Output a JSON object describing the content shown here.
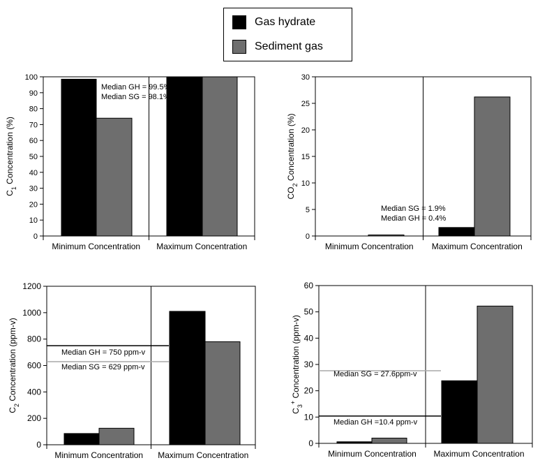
{
  "legend": {
    "items": [
      {
        "label": "Gas hydrate",
        "color": "#000000"
      },
      {
        "label": "Sediment gas",
        "color": "#6e6e6e"
      }
    ]
  },
  "chart_data": [
    {
      "id": "c1",
      "type": "bar",
      "categories": [
        "Minimum Concentration",
        "Maximum Concentration"
      ],
      "series": [
        {
          "name": "Gas hydrate",
          "values": [
            98.5,
            100
          ]
        },
        {
          "name": "Sediment gas",
          "values": [
            74,
            100
          ]
        }
      ],
      "ylabel": "C1 Concentration (%)",
      "ylabel_main": "C",
      "ylabel_sub": "1",
      "ylabel_rest": " Concentration (%)",
      "ylim": [
        0,
        100
      ],
      "yticks": [
        0,
        10,
        20,
        30,
        40,
        50,
        60,
        70,
        80,
        90,
        100
      ],
      "annotations": [
        {
          "text": "Median GH = 99.5%",
          "value": 99.5
        },
        {
          "text": "Median SG = 98.1%",
          "value": 98.1
        }
      ]
    },
    {
      "id": "co2",
      "type": "bar",
      "categories": [
        "Minimum Concentration",
        "Maximum Concentration"
      ],
      "series": [
        {
          "name": "Gas hydrate",
          "values": [
            0,
            1.6
          ]
        },
        {
          "name": "Sediment gas",
          "values": [
            0.2,
            26.2
          ]
        }
      ],
      "ylabel": "CO2 Concentration (%)",
      "ylabel_main": "CO",
      "ylabel_sub": "2",
      "ylabel_rest": " Concentration (%)",
      "ylim": [
        0,
        30
      ],
      "yticks": [
        0,
        5,
        10,
        15,
        20,
        25,
        30
      ],
      "annotations": [
        {
          "text": "Median SG = 1.9%",
          "value": 1.9
        },
        {
          "text": "Median GH = 0.4%",
          "value": 0.4
        }
      ]
    },
    {
      "id": "c2",
      "type": "bar",
      "categories": [
        "Minimum Concentration",
        "Maximum Concentration"
      ],
      "series": [
        {
          "name": "Gas hydrate",
          "values": [
            85,
            1010
          ]
        },
        {
          "name": "Sediment gas",
          "values": [
            125,
            780
          ]
        }
      ],
      "ylabel": "C2 Concentration (ppm-v)",
      "ylabel_main": "C",
      "ylabel_sub": "2",
      "ylabel_rest": " Concentration (ppm-v)",
      "ylim": [
        0,
        1200
      ],
      "yticks": [
        0,
        200,
        400,
        600,
        800,
        1000,
        1200
      ],
      "annotations": [
        {
          "text": "Median GH = 750 ppm-v",
          "value": 750,
          "color": "#000000"
        },
        {
          "text": "Median SG = 629 ppm-v",
          "value": 629,
          "color": "#a8a8a8"
        }
      ]
    },
    {
      "id": "c3",
      "type": "bar",
      "categories": [
        "Minimum Concentration",
        "Maximum Concentration"
      ],
      "series": [
        {
          "name": "Gas hydrate",
          "values": [
            0.6,
            23.8
          ]
        },
        {
          "name": "Sediment gas",
          "values": [
            2.0,
            52.2
          ]
        }
      ],
      "ylabel": "C3+ Concentration (ppm-v)",
      "ylabel_main": "C",
      "ylabel_sub": "3",
      "ylabel_sup": "+",
      "ylabel_rest": " Concentration (ppm-v)",
      "ylim": [
        0,
        60
      ],
      "yticks": [
        0,
        10,
        20,
        30,
        40,
        50,
        60
      ],
      "annotations": [
        {
          "text": "Median SG = 27.6ppm-v",
          "value": 27.6,
          "color": "#a8a8a8"
        },
        {
          "text": "Median GH =10.4 ppm-v",
          "value": 10.4,
          "color": "#000000"
        }
      ]
    }
  ]
}
